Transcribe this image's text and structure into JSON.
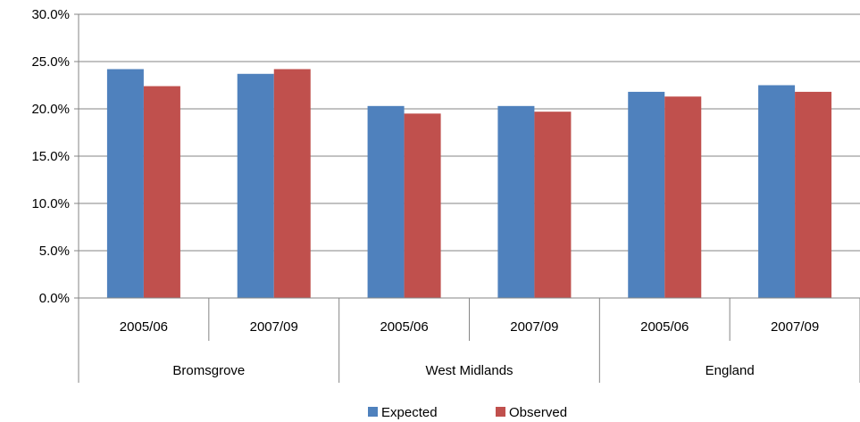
{
  "chart_data": {
    "type": "bar",
    "groups": [
      "Bromsgrove",
      "West Midlands",
      "England"
    ],
    "periods": [
      "2005/06",
      "2007/09"
    ],
    "categories": [
      "Bromsgrove 2005/06",
      "Bromsgrove 2007/09",
      "West Midlands 2005/06",
      "West Midlands 2007/09",
      "England 2005/06",
      "England 2007/09"
    ],
    "series": [
      {
        "name": "Expected",
        "color": "#4f81bd",
        "values": [
          24.2,
          23.7,
          20.3,
          20.3,
          21.8,
          22.5
        ]
      },
      {
        "name": "Observed",
        "color": "#c0504d",
        "values": [
          22.4,
          24.2,
          19.5,
          19.7,
          21.3,
          21.8
        ]
      }
    ],
    "yticks": [
      "0.0%",
      "5.0%",
      "10.0%",
      "15.0%",
      "20.0%",
      "25.0%",
      "30.0%"
    ],
    "ylim": [
      0,
      30
    ],
    "grid": true,
    "legend_position": "bottom",
    "title": "",
    "xlabel": "",
    "ylabel": ""
  }
}
